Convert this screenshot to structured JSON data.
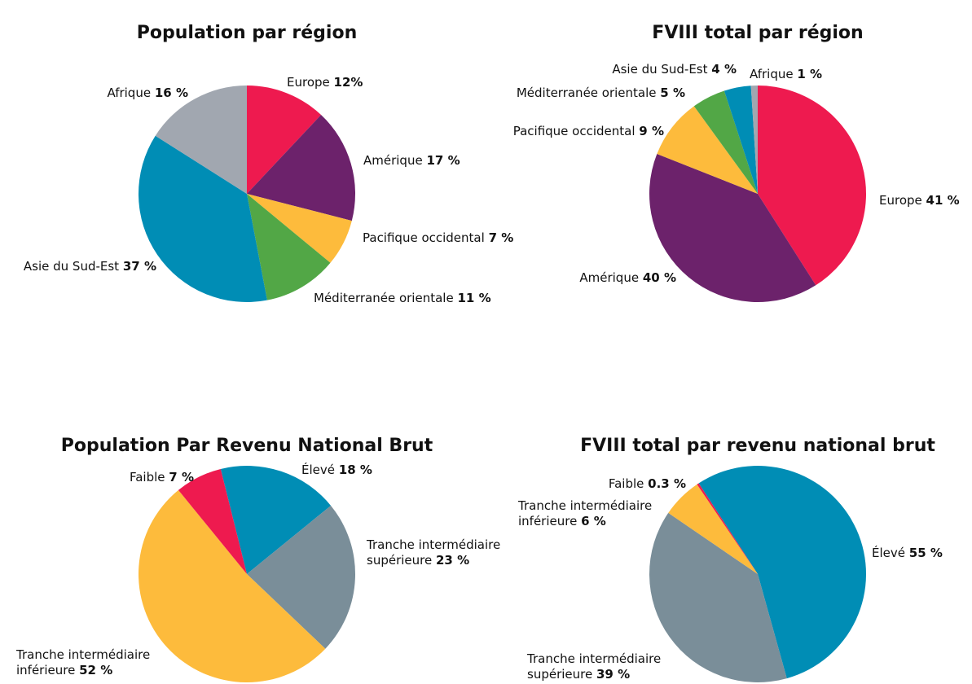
{
  "chart_data": [
    {
      "type": "pie",
      "title": "Population par région",
      "start_angle": 0,
      "categories": [
        "Europe",
        "Amérique",
        "Pacifique occidental",
        "Méditerranée orientale",
        "Asie du Sud-Est",
        "Afrique"
      ],
      "values": [
        12,
        17,
        7,
        11,
        37,
        16
      ],
      "value_labels": [
        "12%",
        "17 %",
        "7 %",
        "11 %",
        "37 %",
        "16 %"
      ],
      "colors": [
        "#ee1a4f",
        "#6c226b",
        "#fdbb3c",
        "#52a746",
        "#008db5",
        "#a1a7b0"
      ]
    },
    {
      "type": "pie",
      "title": "FVIII total par région",
      "start_angle": 0,
      "categories": [
        "Europe",
        "Amérique",
        "Pacifique occidental",
        "Méditerranée orientale",
        "Asie du Sud-Est",
        "Afrique"
      ],
      "values": [
        41,
        40,
        9,
        5,
        4,
        1
      ],
      "value_labels": [
        "41 %",
        "40 %",
        "9 %",
        "5 %",
        "4 %",
        "1 %"
      ],
      "colors": [
        "#ee1a4f",
        "#6c226b",
        "#fdbb3c",
        "#52a746",
        "#008db5",
        "#a1a7b0"
      ]
    },
    {
      "type": "pie",
      "title": "Population Par Revenu National Brut",
      "start_angle": -14,
      "categories": [
        "Élevé",
        "Tranche intermédiaire supérieure",
        "Tranche intermédiaire inférieure",
        "Faible"
      ],
      "values": [
        18,
        23,
        52,
        7
      ],
      "value_labels": [
        "18 %",
        "23 %",
        "52 %",
        "7 %"
      ],
      "colors": [
        "#008db5",
        "#7a8e99",
        "#fdbb3c",
        "#ee1a4f"
      ]
    },
    {
      "type": "pie",
      "title": "FVIII total par revenu national brut",
      "start_angle": -33,
      "categories": [
        "Élevé",
        "Tranche intermédiaire supérieure",
        "Tranche intermédiaire inférieure",
        "Faible"
      ],
      "values": [
        55,
        39,
        6,
        0.3
      ],
      "value_labels": [
        "55 %",
        "39 %",
        "6 %",
        "0.3 %"
      ],
      "colors": [
        "#008db5",
        "#7a8e99",
        "#fdbb3c",
        "#ee1a4f"
      ]
    }
  ]
}
